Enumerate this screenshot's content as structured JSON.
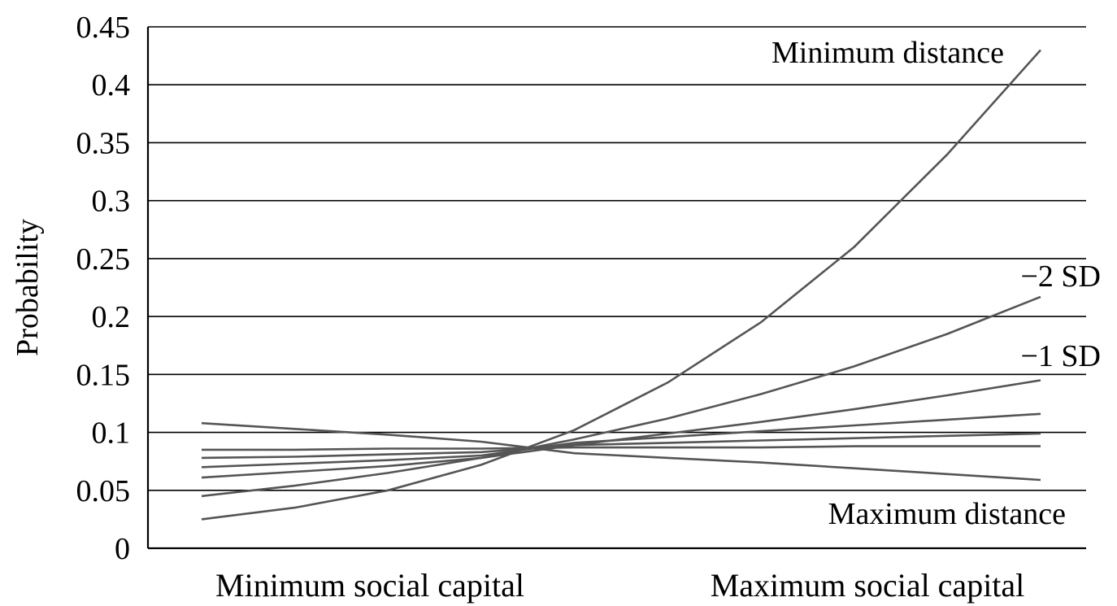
{
  "chart_data": {
    "type": "line",
    "title": "",
    "xlabel": "",
    "ylabel": "Probability",
    "ylim": [
      0,
      0.45
    ],
    "yticks": [
      0,
      0.05,
      0.1,
      0.15,
      0.2,
      0.25,
      0.3,
      0.35,
      0.4,
      0.45
    ],
    "ytick_labels": [
      "0",
      "0.05",
      "0.1",
      "0.15",
      "0.2",
      "0.25",
      "0.3",
      "0.35",
      "0.4",
      "0.45"
    ],
    "categories": [
      "Minimum social capital",
      "Maximum social capital"
    ],
    "x": [
      0,
      0.1111,
      0.2222,
      0.3333,
      0.4444,
      0.5556,
      0.6667,
      0.7778,
      0.8889,
      1
    ],
    "grid": true,
    "legend": "none",
    "series": [
      {
        "name": "Minimum distance",
        "values": [
          0.025,
          0.035,
          0.05,
          0.072,
          0.102,
          0.143,
          0.195,
          0.26,
          0.34,
          0.43
        ]
      },
      {
        "name": "−2 SD",
        "values": [
          0.045,
          0.054,
          0.065,
          0.078,
          0.094,
          0.112,
          0.133,
          0.157,
          0.185,
          0.217
        ]
      },
      {
        "values": [
          0.061,
          0.066,
          0.071,
          0.078,
          0.089,
          0.099,
          0.109,
          0.12,
          0.132,
          0.145
        ]
      },
      {
        "values": [
          0.07,
          0.073,
          0.076,
          0.08,
          0.091,
          0.096,
          0.101,
          0.106,
          0.111,
          0.116
        ]
      },
      {
        "values": [
          0.078,
          0.079,
          0.081,
          0.083,
          0.089,
          0.091,
          0.093,
          0.095,
          0.097,
          0.099
        ]
      },
      {
        "values": [
          0.085,
          0.085,
          0.086,
          0.086,
          0.087,
          0.087,
          0.087,
          0.088,
          0.088,
          0.088
        ]
      },
      {
        "name": "Maximum distance",
        "values": [
          0.108,
          0.103,
          0.098,
          0.092,
          0.082,
          0.078,
          0.074,
          0.069,
          0.064,
          0.059
        ]
      }
    ],
    "annotations": [
      {
        "text": "Minimum distance",
        "series": 0
      },
      {
        "text": "−2 SD",
        "series": 1
      },
      {
        "text": "−1 SD",
        "series": 2
      },
      {
        "text": "Maximum distance",
        "series": 6
      }
    ],
    "colors": {
      "line": "#555555",
      "grid": "#000000",
      "background": "#ffffff"
    }
  }
}
